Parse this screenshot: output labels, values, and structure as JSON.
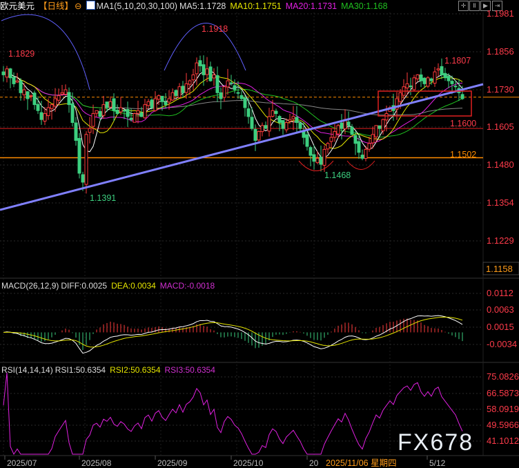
{
  "header": {
    "symbol": "欧元美元",
    "period": "【日线】",
    "ma_label": "MA1(5,10,20,30,100)",
    "ma5": "MA5:1.1728",
    "ma10": "MA10:1.1751",
    "ma20": "MA20:1.1731",
    "ma30": "MA30:1.168",
    "toolbar_icons": [
      "crosshair-icon",
      "zoom-in-icon",
      "play-icon",
      "step-forward-icon"
    ]
  },
  "macd_header": {
    "label": "MACD(26,12,9)",
    "diff": "DIFF:0.0025",
    "dea": "DEA:0.0034",
    "macd": "MACD:-0.0018"
  },
  "rsi_header": {
    "label": "RSI(14,14,14)",
    "rsi1": "RSI1:50.6354",
    "rsi2": "RSI2:50.6354",
    "rsi3": "RSI3:50.6354"
  },
  "watermark": "FX678",
  "colors": {
    "up": "#ff3b3b",
    "down": "#3ccf7f",
    "ma5": "#ffffff",
    "ma10": "#e5e500",
    "ma20": "#e020e0",
    "ma30": "#20c020",
    "ma100": "#888888",
    "trendline": "#8080ff",
    "support": "#ff8c00",
    "axis_text": "#ff3b4a"
  },
  "chart_data": {
    "type": "candlestick",
    "instrument": "欧元美元",
    "x_ticks": [
      "2025/07",
      "2025/08",
      "2025/09",
      "2025/10",
      "20",
      "5/12"
    ],
    "cursor_date": "2025/11/06 星期四",
    "y_ticks": [
      "1.1981",
      "1.1856",
      "1.1730",
      "1.1605",
      "1.1480",
      "1.1354",
      "1.1229"
    ],
    "y_current": "1.1158",
    "ylim": [
      1.112,
      1.2025
    ],
    "closes": [
      1.178,
      1.18,
      1.177,
      1.175,
      1.176,
      1.172,
      1.173,
      1.17,
      1.171,
      1.168,
      1.166,
      1.163,
      1.165,
      1.167,
      1.168,
      1.17,
      1.171,
      1.172,
      1.173,
      1.168,
      1.162,
      1.156,
      1.145,
      1.142,
      1.158,
      1.16,
      1.165,
      1.166,
      1.164,
      1.168,
      1.167,
      1.169,
      1.166,
      1.165,
      1.167,
      1.166,
      1.164,
      1.163,
      1.165,
      1.166,
      1.164,
      1.168,
      1.169,
      1.167,
      1.17,
      1.171,
      1.169,
      1.168,
      1.17,
      1.172,
      1.171,
      1.174,
      1.172,
      1.175,
      1.176,
      1.178,
      1.182,
      1.181,
      1.178,
      1.18,
      1.176,
      1.178,
      1.172,
      1.17,
      1.174,
      1.176,
      1.175,
      1.173,
      1.172,
      1.17,
      1.167,
      1.164,
      1.16,
      1.156,
      1.159,
      1.161,
      1.16,
      1.164,
      1.166,
      1.165,
      1.162,
      1.16,
      1.162,
      1.163,
      1.164,
      1.162,
      1.16,
      1.157,
      1.154,
      1.151,
      1.149,
      1.15,
      1.148,
      1.153,
      1.155,
      1.157,
      1.159,
      1.161,
      1.16,
      1.163,
      1.161,
      1.158,
      1.155,
      1.152,
      1.15,
      1.153,
      1.155,
      1.158,
      1.161,
      1.16,
      1.163,
      1.165,
      1.167,
      1.166,
      1.17,
      1.172,
      1.174,
      1.175,
      1.174,
      1.177,
      1.178,
      1.176,
      1.175,
      1.177,
      1.176,
      1.179,
      1.18,
      1.178,
      1.177,
      1.176,
      1.175,
      1.174,
      1.172,
      1.17
    ],
    "annotations": [
      {
        "text": "1.1829",
        "kind": "high",
        "color": "#ff3b4a"
      },
      {
        "text": "1.1918",
        "kind": "high",
        "color": "#ff3b4a"
      },
      {
        "text": "1.1391",
        "kind": "low",
        "color": "#3ccf7f"
      },
      {
        "text": "1.1468",
        "kind": "low",
        "color": "#3ccf7f"
      },
      {
        "text": "1.1807",
        "kind": "high",
        "color": "#ff3b4a"
      },
      {
        "text": "1.1600",
        "kind": "level",
        "color": "#ff3b4a"
      },
      {
        "text": "1.1502",
        "kind": "level",
        "color": "#ff8c00"
      }
    ],
    "levels": [
      1.16,
      1.1502,
      1.1705
    ],
    "macd": {
      "y_ticks": [
        "0.0112",
        "0.0063",
        "0.0015",
        "-0.0034"
      ],
      "ylim": [
        -0.0082,
        0.015
      ]
    },
    "rsi": {
      "y_ticks": [
        "75.0826",
        "66.5873",
        "58.0919",
        "49.5966",
        "41.1012"
      ],
      "ylim": [
        34,
        82
      ]
    }
  }
}
